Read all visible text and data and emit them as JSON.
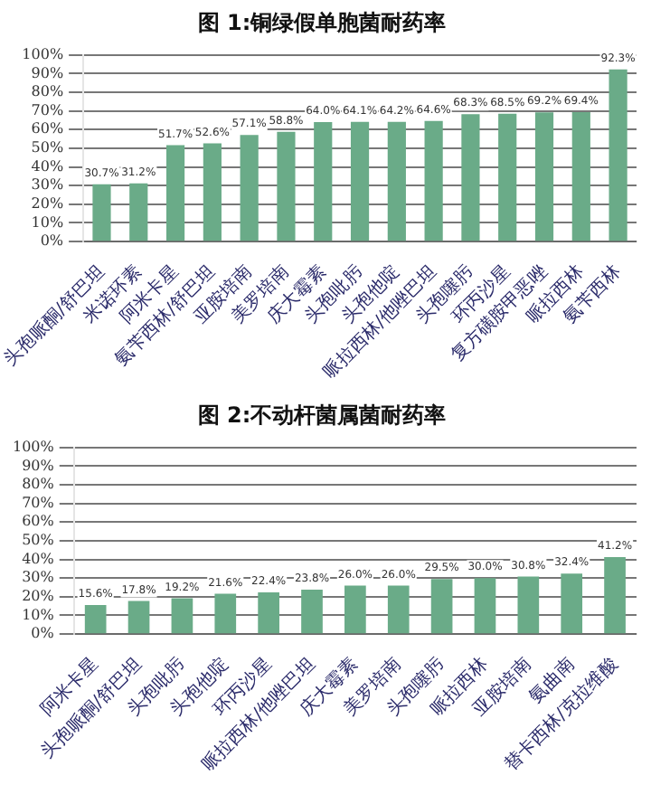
{
  "chart_data": [
    {
      "type": "bar",
      "title": "图 1:铜绿假单胞菌耐药率",
      "categories": [
        "头孢哌酮/舒巴坦",
        "米诺环素",
        "阿米卡星",
        "氨苄西林/舒巴坦",
        "亚胺培南",
        "美罗培南",
        "庆大霉素",
        "头孢吡肟",
        "头孢他啶",
        "哌拉西林/他唑巴坦",
        "头孢噻肟",
        "环丙沙星",
        "复方磺胺甲恶唑",
        "哌拉西林",
        "氨苄西林"
      ],
      "values": [
        30.7,
        31.2,
        51.7,
        52.6,
        57.1,
        58.8,
        64.0,
        64.1,
        64.2,
        64.6,
        68.3,
        68.5,
        69.2,
        69.4,
        92.3
      ],
      "value_labels": [
        "30.7%",
        "31.2%",
        "51.7%",
        "52.6%",
        "57.1%",
        "58.8%",
        "64.0%",
        "64.1%",
        "64.2%",
        "64.6%",
        "68.3%",
        "68.5%",
        "69.2%",
        "69.4%",
        "92.3%"
      ],
      "color": "#6aab88",
      "ylim": [
        0,
        100
      ],
      "yticks": [
        {
          "value": 0,
          "label": "0%"
        },
        {
          "value": 10,
          "label": "10%"
        },
        {
          "value": 20,
          "label": "20%"
        },
        {
          "value": 30,
          "label": "30%"
        },
        {
          "value": 40,
          "label": "40%"
        },
        {
          "value": 50,
          "label": "50%"
        },
        {
          "value": 60,
          "label": "60%"
        },
        {
          "value": 70,
          "label": "70%"
        },
        {
          "value": 80,
          "label": "80%"
        },
        {
          "value": 90,
          "label": "90%"
        },
        {
          "value": 100,
          "label": "100%"
        }
      ],
      "grid": "y"
    },
    {
      "type": "bar",
      "title": "图 2:不动杆菌属菌耐药率",
      "categories": [
        "阿米卡星",
        "头孢哌酮/舒巴坦",
        "头孢吡肟",
        "头孢他啶",
        "环丙沙星",
        "哌拉西林/他唑巴坦",
        "庆大霉素",
        "美罗培南",
        "头孢噻肟",
        "哌拉西林",
        "亚胺培南",
        "氨曲南",
        "替卡西林/克拉维酸"
      ],
      "values": [
        15.6,
        17.8,
        19.2,
        21.6,
        22.4,
        23.8,
        26.0,
        26.0,
        29.5,
        30.0,
        30.8,
        32.4,
        41.2
      ],
      "value_labels": [
        "15.6%",
        "17.8%",
        "19.2%",
        "21.6%",
        "22.4%",
        "23.8%",
        "26.0%",
        "26.0%",
        "29.5%",
        "30.0%",
        "30.8%",
        "32.4%",
        "41.2%"
      ],
      "color": "#6aab88",
      "ylim": [
        0,
        100
      ],
      "yticks": [
        {
          "value": 0,
          "label": "0%"
        },
        {
          "value": 10,
          "label": "10%"
        },
        {
          "value": 20,
          "label": "20%"
        },
        {
          "value": 30,
          "label": "30%"
        },
        {
          "value": 40,
          "label": "40%"
        },
        {
          "value": 50,
          "label": "50%"
        },
        {
          "value": 60,
          "label": "60%"
        },
        {
          "value": 70,
          "label": "70%"
        },
        {
          "value": 80,
          "label": "80%"
        },
        {
          "value": 90,
          "label": "90%"
        },
        {
          "value": 100,
          "label": "100%"
        }
      ],
      "grid": "y"
    }
  ]
}
